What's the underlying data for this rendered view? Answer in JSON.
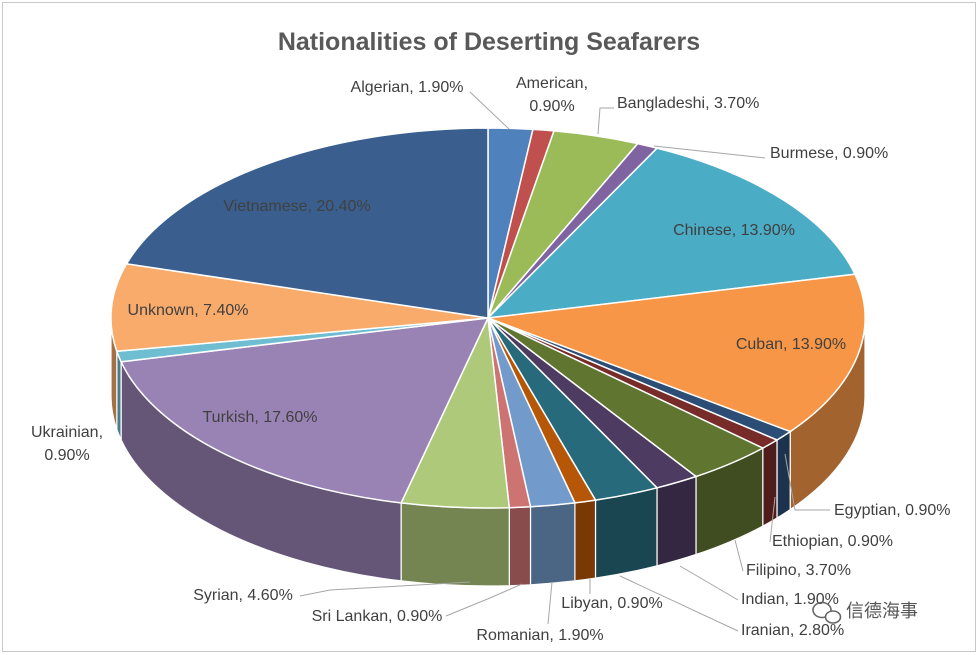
{
  "chart_data": {
    "type": "pie",
    "title": "Nationalities of Deserting Seafarers",
    "slices": [
      {
        "label": "Algerian",
        "value": 1.9,
        "display": "Algerian, 1.90%",
        "color": "#4f81bd"
      },
      {
        "label": "American",
        "value": 0.9,
        "display": "American, 0.90%",
        "color": "#c0504d"
      },
      {
        "label": "Bangladeshi",
        "value": 3.7,
        "display": "Bangladeshi, 3.70%",
        "color": "#9bbb59"
      },
      {
        "label": "Burmese",
        "value": 0.9,
        "display": "Burmese, 0.90%",
        "color": "#8064a2"
      },
      {
        "label": "Chinese",
        "value": 13.9,
        "display": "Chinese, 13.90%",
        "color": "#4bacc6"
      },
      {
        "label": "Cuban",
        "value": 13.9,
        "display": "Cuban, 13.90%",
        "color": "#f79646"
      },
      {
        "label": "Egyptian",
        "value": 0.9,
        "display": "Egyptian, 0.90%",
        "color": "#2c4d75"
      },
      {
        "label": "Ethiopian",
        "value": 0.9,
        "display": "Ethiopian, 0.90%",
        "color": "#772c2a"
      },
      {
        "label": "Filipino",
        "value": 3.7,
        "display": "Filipino, 3.70%",
        "color": "#5f7530"
      },
      {
        "label": "Indian",
        "value": 1.9,
        "display": "Indian, 1.90%",
        "color": "#4d3b62"
      },
      {
        "label": "Iranian",
        "value": 2.8,
        "display": "Iranian, 2.80%",
        "color": "#276a7c"
      },
      {
        "label": "Libyan",
        "value": 0.9,
        "display": "Libyan, 0.90%",
        "color": "#b65708"
      },
      {
        "label": "Romanian",
        "value": 1.9,
        "display": "Romanian, 1.90%",
        "color": "#729aca"
      },
      {
        "label": "Sri Lankan",
        "value": 0.9,
        "display": "Sri Lankan, 0.90%",
        "color": "#cd7371"
      },
      {
        "label": "Syrian",
        "value": 4.6,
        "display": "Syrian, 4.60%",
        "color": "#afc97a"
      },
      {
        "label": "Turkish",
        "value": 17.6,
        "display": "Turkish, 17.60%",
        "color": "#9983b5"
      },
      {
        "label": "Ukrainian",
        "value": 0.9,
        "display": "Ukrainian, 0.90%",
        "color": "#6fbdd1"
      },
      {
        "label": "Unknown",
        "value": 7.4,
        "display": "Unknown, 7.40%",
        "color": "#f9ab6b"
      },
      {
        "label": "Vietnamese",
        "value": 20.4,
        "display": "Vietnamese, 20.40%",
        "color": "#3a5f8f"
      }
    ],
    "start_angle_deg": 0,
    "direction": "clockwise",
    "style": "3d-pie"
  },
  "watermark": "信德海事",
  "watermark_icon": "wechat-icon"
}
